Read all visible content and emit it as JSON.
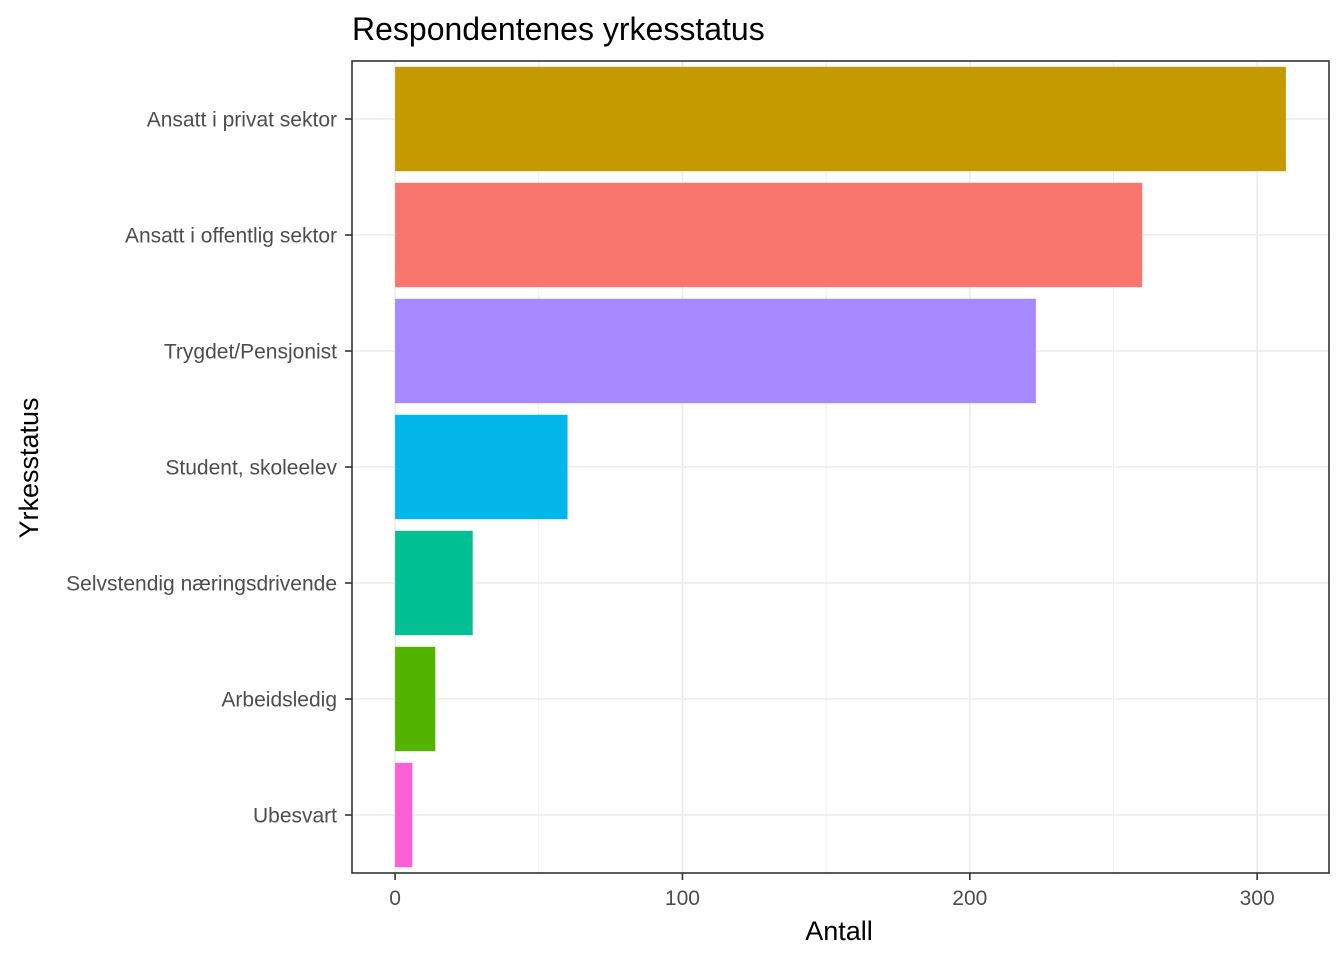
{
  "chart_data": {
    "type": "bar",
    "orientation": "horizontal",
    "title": "Respondentenes yrkesstatus",
    "xlabel": "Antall",
    "ylabel": "Yrkesstatus",
    "xlim": [
      -15,
      325
    ],
    "xticks": [
      0,
      100,
      200,
      300
    ],
    "xtick_labels": [
      "0",
      "100",
      "200",
      "300"
    ],
    "minor_gridlines": [
      50,
      150,
      250
    ],
    "grid": true,
    "legend": "none",
    "categories": [
      "Ansatt i privat sektor",
      "Ansatt i offentlig sektor",
      "Trygdet/Pensjonist",
      "Student, skoleelev",
      "Selvstendig næringsdrivende",
      "Arbeidsledig",
      "Ubesvart"
    ],
    "values": [
      310,
      260,
      223,
      60,
      27,
      14,
      6
    ],
    "colors": [
      "#C49A00",
      "#F8766D",
      "#A58AFF",
      "#00B6EB",
      "#00C094",
      "#53B400",
      "#FB61D7"
    ]
  }
}
